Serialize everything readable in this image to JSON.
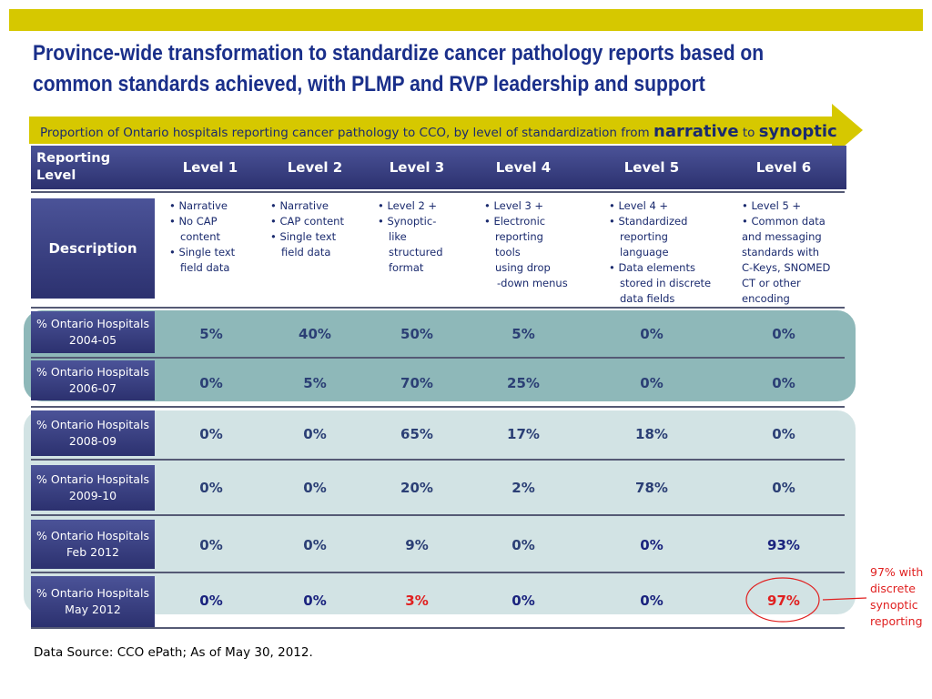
{
  "title_line1": "Province-wide transformation to standardize cancer pathology reports based on",
  "title_line2": "common standards achieved, with PLMP and RVP leadership and support",
  "subtitle": {
    "prefix": "Proportion of Ontario hospitals reporting cancer pathology to CCO, by level of standardization from ",
    "word1": "narrative",
    "connector": " to ",
    "word2": "synoptic"
  },
  "header": {
    "first": [
      "Reporting",
      "Level"
    ],
    "levels": [
      "Level 1",
      "Level 2",
      "Level 3",
      "Level 4",
      "Level 5",
      "Level 6"
    ]
  },
  "description": {
    "label": "Description",
    "level1": [
      "• Narrative",
      "• No CAP",
      "content",
      "• Single text",
      "field data"
    ],
    "level2": [
      "• Narrative",
      "• CAP content",
      "• Single text",
      "field data"
    ],
    "level3": [
      "• Level 2 +",
      "• Synoptic-",
      "like",
      "structured",
      "format"
    ],
    "level4": [
      "• Level 3 +",
      "• Electronic",
      "reporting",
      "tools",
      "using drop",
      "-down menus"
    ],
    "level5": [
      "• Level 4 +",
      "• Standardized",
      "reporting",
      "language",
      "• Data elements",
      "stored in discrete",
      "data fields"
    ],
    "level6": [
      "• Level 5 +",
      "• Common data",
      "and messaging",
      "standards with",
      "C-Keys, SNOMED",
      "CT or other",
      "encoding"
    ]
  },
  "rows": [
    {
      "label": [
        "% Ontario Hospitals",
        "2004-05"
      ],
      "values": [
        "5%",
        "40%",
        "50%",
        "5%",
        "0%",
        "0%"
      ]
    },
    {
      "label": [
        "% Ontario Hospitals",
        "2006-07"
      ],
      "values": [
        "0%",
        "5%",
        "70%",
        "25%",
        "0%",
        "0%"
      ]
    },
    {
      "label": [
        "% Ontario Hospitals",
        "2008-09"
      ],
      "values": [
        "0%",
        "0%",
        "65%",
        "17%",
        "18%",
        "0%"
      ]
    },
    {
      "label": [
        "% Ontario Hospitals",
        "2009-10"
      ],
      "values": [
        "0%",
        "0%",
        "20%",
        "2%",
        "78%",
        "0%"
      ]
    },
    {
      "label": [
        "% Ontario Hospitals",
        "Feb 2012"
      ],
      "values": [
        "0%",
        "0%",
        "9%",
        "0%",
        "0%",
        "93%"
      ]
    },
    {
      "label": [
        "% Ontario Hospitals",
        "May 2012"
      ],
      "values": [
        "0%",
        "0%",
        "3%",
        "0%",
        "0%",
        "97%"
      ]
    }
  ],
  "annotation": [
    "97% with",
    "discrete",
    "synoptic",
    "reporting"
  ],
  "source": "Data Source:  CCO ePath;  As of May 30, 2012.",
  "colors": {
    "accent_bar": "#d6c800",
    "title": "#1a2f8a",
    "header_bg": "#3a4083",
    "band_dark": "#8eb8b9",
    "band_light": "#d2e3e4",
    "highlight": "#e02020"
  }
}
